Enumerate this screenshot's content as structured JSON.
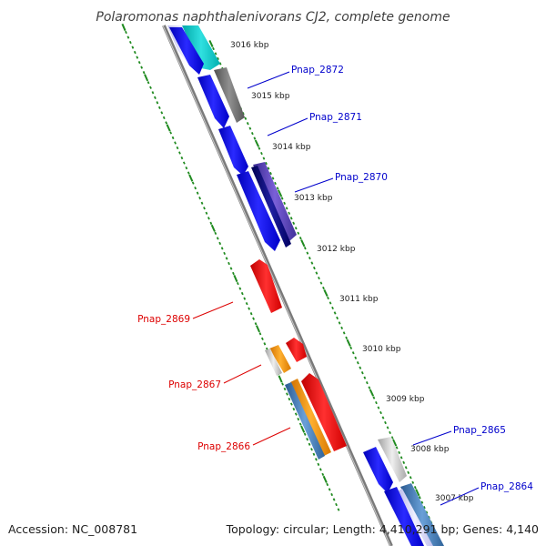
{
  "title": "Polaromonas naphthalenivorans CJ2, complete genome",
  "footer": {
    "accession": "Accession: NC_008781",
    "summary": "Topology: circular; Length: 4,410,291 bp; Genes: 4,140"
  },
  "colors": {
    "forward_gene": "#1010ee",
    "reverse_gene": "#ee1010",
    "forward_label": "#0000cc",
    "reverse_label": "#dd0000",
    "ticks": "#1f8a1f",
    "backbone": "#808080"
  },
  "kbp_ticks": [
    "3016 kbp",
    "3015 kbp",
    "3014 kbp",
    "3013 kbp",
    "3012 kbp",
    "3011 kbp",
    "3010 kbp",
    "3009 kbp",
    "3008 kbp",
    "3007 kbp"
  ],
  "gene_labels": [
    {
      "text": "Pnap_2872",
      "strand": "forward"
    },
    {
      "text": "Pnap_2871",
      "strand": "forward"
    },
    {
      "text": "Pnap_2870",
      "strand": "forward"
    },
    {
      "text": "Pnap_2869",
      "strand": "reverse"
    },
    {
      "text": "Pnap_2867",
      "strand": "reverse"
    },
    {
      "text": "Pnap_2866",
      "strand": "reverse"
    },
    {
      "text": "Pnap_2865",
      "strand": "forward"
    },
    {
      "text": "Pnap_2864",
      "strand": "forward"
    }
  ]
}
